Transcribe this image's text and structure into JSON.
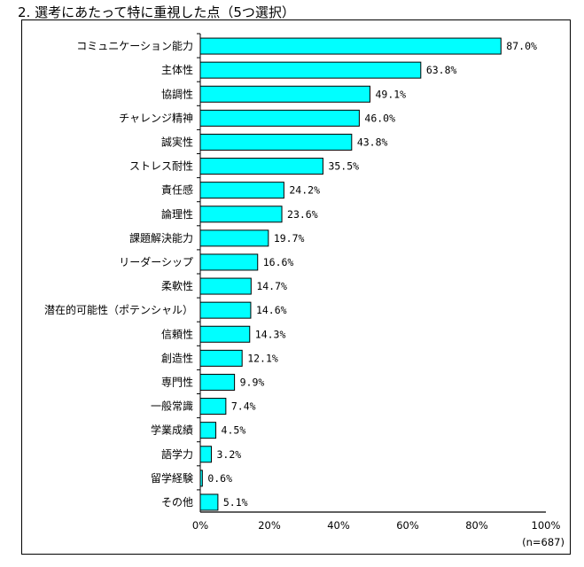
{
  "chart_data": {
    "type": "bar",
    "orientation": "horizontal",
    "title": "2. 選考にあたって特に重視した点（5つ選択）",
    "categories": [
      "コミュニケーション能力",
      "主体性",
      "協調性",
      "チャレンジ精神",
      "誠実性",
      "ストレス耐性",
      "責任感",
      "論理性",
      "課題解決能力",
      "リーダーシップ",
      "柔軟性",
      "潜在的可能性（ポテンシャル）",
      "信頼性",
      "創造性",
      "専門性",
      "一般常識",
      "学業成績",
      "語学力",
      "留学経験",
      "その他"
    ],
    "values": [
      87.0,
      63.8,
      49.1,
      46.0,
      43.8,
      35.5,
      24.2,
      23.6,
      19.7,
      16.6,
      14.7,
      14.6,
      14.3,
      12.1,
      9.9,
      7.4,
      4.5,
      3.2,
      0.6,
      5.1
    ],
    "value_labels": [
      "87.0%",
      "63.8%",
      "49.1%",
      "46.0%",
      "43.8%",
      "35.5%",
      "24.2%",
      "23.6%",
      "19.7%",
      "16.6%",
      "14.7%",
      "14.6%",
      "14.3%",
      "12.1%",
      "9.9%",
      "7.4%",
      "4.5%",
      "3.2%",
      "0.6%",
      "5.1%"
    ],
    "xlim": [
      0,
      100
    ],
    "xticks": [
      "0%",
      "20%",
      "40%",
      "60%",
      "80%",
      "100%"
    ],
    "note": "(n=687)",
    "grid": false,
    "bar_color": "#00FFFF",
    "bar_edge_color": "#000000"
  }
}
